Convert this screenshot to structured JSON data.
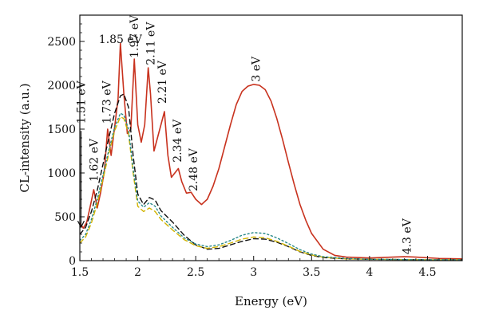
{
  "chart_data": {
    "type": "line",
    "xlabel": "Energy (eV)",
    "ylabel": "CL-intensity (a.u.)",
    "xlim": [
      1.5,
      4.8
    ],
    "ylim": [
      0,
      2800
    ],
    "xticks": [
      "1.5",
      "2",
      "2.5",
      "3",
      "3.5",
      "4",
      "4.5"
    ],
    "xtick_values": [
      1.5,
      2,
      2.5,
      3,
      3.5,
      4,
      4.5
    ],
    "yticks": [
      "0",
      "500",
      "1000",
      "1500",
      "2000",
      "2500"
    ],
    "ytick_values": [
      0,
      500,
      1000,
      1500,
      2000,
      2500
    ],
    "grid": false,
    "series": [
      {
        "color": "#c8321e",
        "style": "solid",
        "x": [
          1.5,
          1.53,
          1.56,
          1.59,
          1.62,
          1.65,
          1.68,
          1.71,
          1.74,
          1.77,
          1.8,
          1.83,
          1.85,
          1.88,
          1.91,
          1.94,
          1.97,
          2.0,
          2.03,
          2.06,
          2.09,
          2.11,
          2.14,
          2.17,
          2.2,
          2.23,
          2.26,
          2.29,
          2.32,
          2.35,
          2.38,
          2.42,
          2.46,
          2.5,
          2.55,
          2.6,
          2.65,
          2.7,
          2.75,
          2.8,
          2.85,
          2.9,
          2.95,
          3.0,
          3.05,
          3.1,
          3.15,
          3.2,
          3.25,
          3.3,
          3.35,
          3.4,
          3.45,
          3.5,
          3.6,
          3.7,
          3.8,
          4.0,
          4.2,
          4.3,
          4.4,
          4.6,
          4.8
        ],
        "y": [
          430,
          370,
          440,
          620,
          810,
          600,
          780,
          1000,
          1500,
          1200,
          1520,
          1850,
          2480,
          1900,
          1450,
          1500,
          2300,
          1550,
          1350,
          1550,
          2200,
          1900,
          1250,
          1400,
          1550,
          1700,
          1200,
          950,
          1000,
          1050,
          900,
          770,
          780,
          700,
          640,
          700,
          850,
          1050,
          1300,
          1550,
          1780,
          1930,
          1990,
          2010,
          2000,
          1950,
          1820,
          1620,
          1380,
          1120,
          870,
          640,
          460,
          310,
          130,
          60,
          40,
          30,
          40,
          45,
          40,
          25,
          20
        ]
      },
      {
        "color": "#111111",
        "style": "dashed",
        "x": [
          1.5,
          1.55,
          1.6,
          1.65,
          1.7,
          1.75,
          1.8,
          1.85,
          1.88,
          1.92,
          1.96,
          2.0,
          2.05,
          2.1,
          2.15,
          2.2,
          2.3,
          2.4,
          2.5,
          2.6,
          2.7,
          2.8,
          2.9,
          3.0,
          3.1,
          3.2,
          3.3,
          3.4,
          3.5,
          3.6,
          3.8,
          4.0,
          4.5,
          4.8
        ],
        "y": [
          300,
          380,
          560,
          800,
          1100,
          1400,
          1680,
          1880,
          1900,
          1750,
          1200,
          760,
          640,
          720,
          690,
          570,
          440,
          290,
          180,
          130,
          140,
          180,
          220,
          250,
          245,
          210,
          160,
          100,
          60,
          35,
          20,
          15,
          10,
          10
        ]
      },
      {
        "color": "#d2b400",
        "style": "dashed",
        "x": [
          1.5,
          1.55,
          1.6,
          1.65,
          1.7,
          1.75,
          1.8,
          1.85,
          1.88,
          1.92,
          1.96,
          2.0,
          2.05,
          2.1,
          2.15,
          2.2,
          2.3,
          2.4,
          2.5,
          2.6,
          2.7,
          2.8,
          2.9,
          3.0,
          3.1,
          3.2,
          3.3,
          3.4,
          3.5,
          3.6,
          3.8,
          4.0,
          4.5,
          4.8
        ],
        "y": [
          200,
          270,
          430,
          650,
          930,
          1220,
          1480,
          1640,
          1620,
          1450,
          1000,
          620,
          560,
          600,
          560,
          470,
          350,
          240,
          170,
          140,
          160,
          200,
          245,
          270,
          260,
          220,
          165,
          105,
          65,
          40,
          20,
          15,
          10,
          10
        ]
      },
      {
        "color": "#2a8a8a",
        "style": "dotted",
        "x": [
          1.5,
          1.55,
          1.6,
          1.65,
          1.7,
          1.75,
          1.8,
          1.85,
          1.88,
          1.92,
          1.96,
          2.0,
          2.05,
          2.1,
          2.15,
          2.2,
          2.3,
          2.4,
          2.5,
          2.6,
          2.7,
          2.8,
          2.9,
          3.0,
          3.1,
          3.2,
          3.3,
          3.4,
          3.5,
          3.6,
          3.8,
          4.0,
          4.5,
          4.8
        ],
        "y": [
          230,
          300,
          470,
          700,
          980,
          1260,
          1520,
          1680,
          1660,
          1500,
          1050,
          680,
          610,
          660,
          620,
          510,
          380,
          260,
          190,
          160,
          180,
          230,
          290,
          320,
          310,
          260,
          195,
          125,
          75,
          45,
          25,
          15,
          10,
          10
        ]
      }
    ],
    "annotations": [
      {
        "text": "1.85 eV",
        "x": 1.85,
        "y": 2480,
        "rotation": 0
      },
      {
        "text": "1.51 eV",
        "x": 1.51,
        "y": 1560,
        "rotation": -90
      },
      {
        "text": "1.73 eV",
        "x": 1.73,
        "y": 1560,
        "rotation": -90
      },
      {
        "text": "1.62 eV",
        "x": 1.62,
        "y": 900,
        "rotation": -90
      },
      {
        "text": "1.97 eV",
        "x": 1.97,
        "y": 2310,
        "rotation": -90
      },
      {
        "text": "2.11 eV",
        "x": 2.11,
        "y": 2230,
        "rotation": -90
      },
      {
        "text": "2.21 eV",
        "x": 2.21,
        "y": 1790,
        "rotation": -90
      },
      {
        "text": "2.34 eV",
        "x": 2.34,
        "y": 1120,
        "rotation": -90
      },
      {
        "text": "2.48 eV",
        "x": 2.48,
        "y": 790,
        "rotation": -90
      },
      {
        "text": "3 eV",
        "x": 3.02,
        "y": 2040,
        "rotation": -90
      },
      {
        "text": "4.3 eV",
        "x": 4.32,
        "y": 70,
        "rotation": -90
      }
    ],
    "arrow": {
      "x": 1.51,
      "y_from": 1480,
      "y_to": 380
    }
  }
}
